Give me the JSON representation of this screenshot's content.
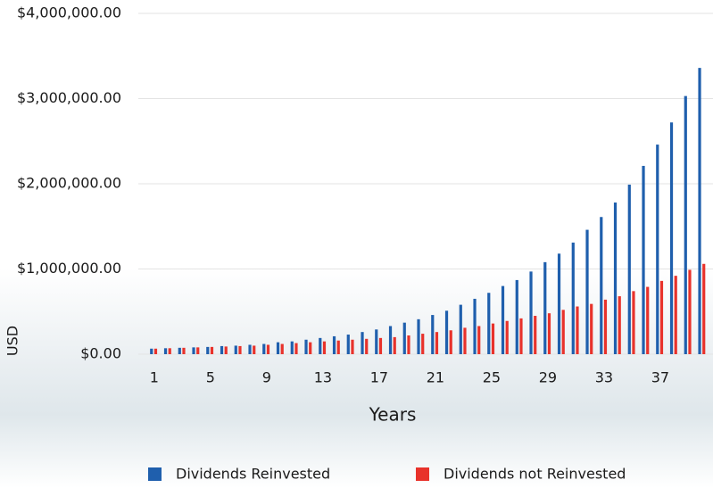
{
  "chart_data": {
    "type": "bar",
    "x_label": "Years",
    "y_label": "USD",
    "categories": [
      1,
      null,
      null,
      null,
      5,
      null,
      null,
      null,
      9,
      null,
      null,
      null,
      13,
      null,
      null,
      null,
      17,
      null,
      null,
      null,
      21,
      null,
      null,
      null,
      25,
      null,
      null,
      null,
      29,
      null,
      null,
      null,
      33,
      null,
      null,
      null,
      37,
      null,
      null,
      null
    ],
    "series": [
      {
        "name": "Dividends Reinvested",
        "color": "#1f5fad",
        "values": [
          65000,
          70000,
          75000,
          80000,
          85000,
          95000,
          100000,
          110000,
          120000,
          140000,
          150000,
          170000,
          190000,
          210000,
          230000,
          260000,
          290000,
          330000,
          370000,
          410000,
          460000,
          510000,
          580000,
          650000,
          720000,
          800000,
          870000,
          970000,
          1080000,
          1180000,
          1310000,
          1460000,
          1610000,
          1780000,
          1990000,
          2210000,
          2460000,
          2720000,
          3030000,
          3360000
        ]
      },
      {
        "name": "Dividends not Reinvested",
        "color": "#e8322b",
        "values": [
          65000,
          70000,
          75000,
          80000,
          85000,
          90000,
          95000,
          100000,
          110000,
          120000,
          130000,
          140000,
          150000,
          160000,
          170000,
          180000,
          190000,
          200000,
          220000,
          240000,
          260000,
          280000,
          310000,
          330000,
          360000,
          390000,
          420000,
          450000,
          480000,
          520000,
          560000,
          590000,
          640000,
          680000,
          740000,
          790000,
          860000,
          920000,
          990000,
          1060000
        ]
      }
    ],
    "ylim": [
      0,
      4000000
    ],
    "yticks": [
      {
        "value": 0,
        "label": "$0.00"
      },
      {
        "value": 1000000,
        "label": "$1,000,000.00"
      },
      {
        "value": 2000000,
        "label": "$2,000,000.00"
      },
      {
        "value": 3000000,
        "label": "$3,000,000.00"
      },
      {
        "value": 4000000,
        "label": "$4,000,000.00"
      }
    ],
    "grid": true
  }
}
